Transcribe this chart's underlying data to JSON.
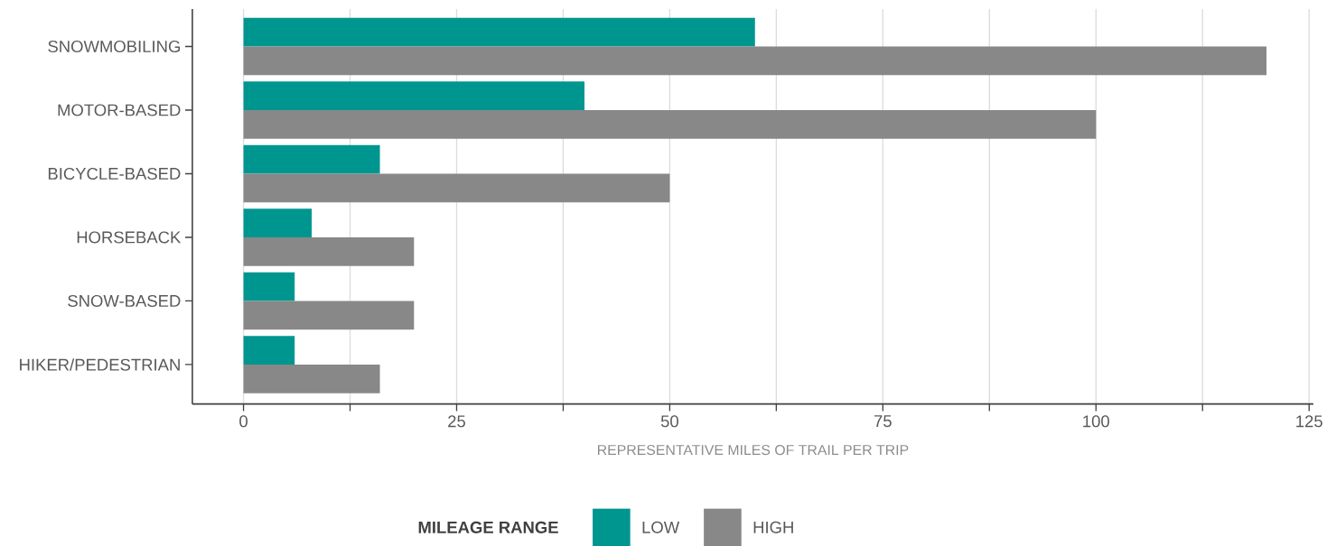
{
  "chart_data": {
    "type": "bar",
    "orientation": "horizontal",
    "categories": [
      "SNOWMOBILING",
      "MOTOR-BASED",
      "BICYCLE-BASED",
      "HORSEBACK",
      "SNOW-BASED",
      "HIKER/PEDESTRIAN"
    ],
    "series": [
      {
        "name": "LOW",
        "color": "#009690",
        "values": [
          60,
          40,
          16,
          8,
          6,
          6
        ]
      },
      {
        "name": "HIGH",
        "color": "#878887",
        "values": [
          120,
          100,
          50,
          20,
          20,
          16
        ]
      }
    ],
    "xlabel": "REPRESENTATIVE MILES OF TRAIL PER TRIP",
    "legend_title": "MILEAGE RANGE",
    "legend": "bottom",
    "grid": "x",
    "xlim": [
      -6,
      125.5
    ],
    "xticks": [
      0,
      {
        "value": 12.5,
        "label": null
      },
      25,
      {
        "value": 37.5,
        "label": null
      },
      50,
      {
        "value": 62.5,
        "label": null
      },
      75,
      {
        "value": 87.5,
        "label": null
      },
      100,
      {
        "value": 112.5,
        "label": null
      },
      125
    ]
  }
}
